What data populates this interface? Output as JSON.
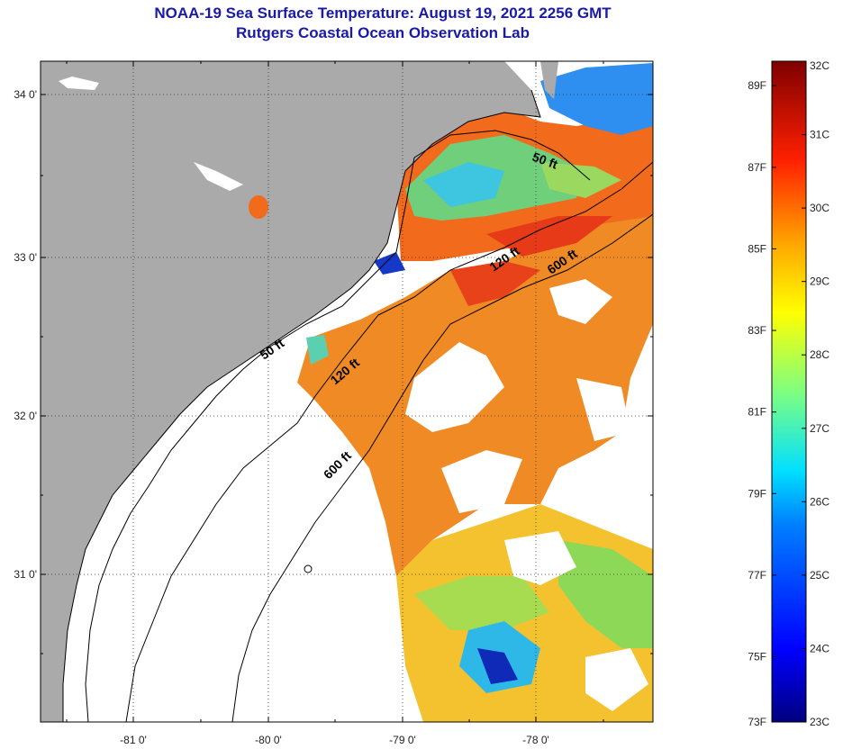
{
  "title_line1": "NOAA-19 Sea Surface Temperature:  August 19, 2021 2256 GMT",
  "title_line2": "Rutgers Coastal Ocean Observation Lab",
  "map": {
    "lat_ticks": [
      "34 0'",
      "33 0'",
      "32 0'",
      "31 0'"
    ],
    "lon_ticks": [
      "-81 0'",
      "-80 0'",
      "-79 0'",
      "-78 0'"
    ],
    "contours": [
      "50 ft",
      "120 ft",
      "600 ft",
      "50 ft",
      "120 ft",
      "600 ft"
    ],
    "colors": {
      "land": "#aaaaaa",
      "nodata": "#ffffff",
      "coast": "#000000"
    }
  },
  "colorbar": {
    "f_labels": [
      "89F",
      "87F",
      "85F",
      "83F",
      "81F",
      "79F",
      "77F",
      "75F",
      "73F"
    ],
    "c_labels": [
      "32C",
      "31C",
      "30C",
      "29C",
      "28C",
      "27C",
      "26C",
      "25C",
      "24C",
      "23C"
    ],
    "range_c": [
      23,
      32
    ]
  }
}
